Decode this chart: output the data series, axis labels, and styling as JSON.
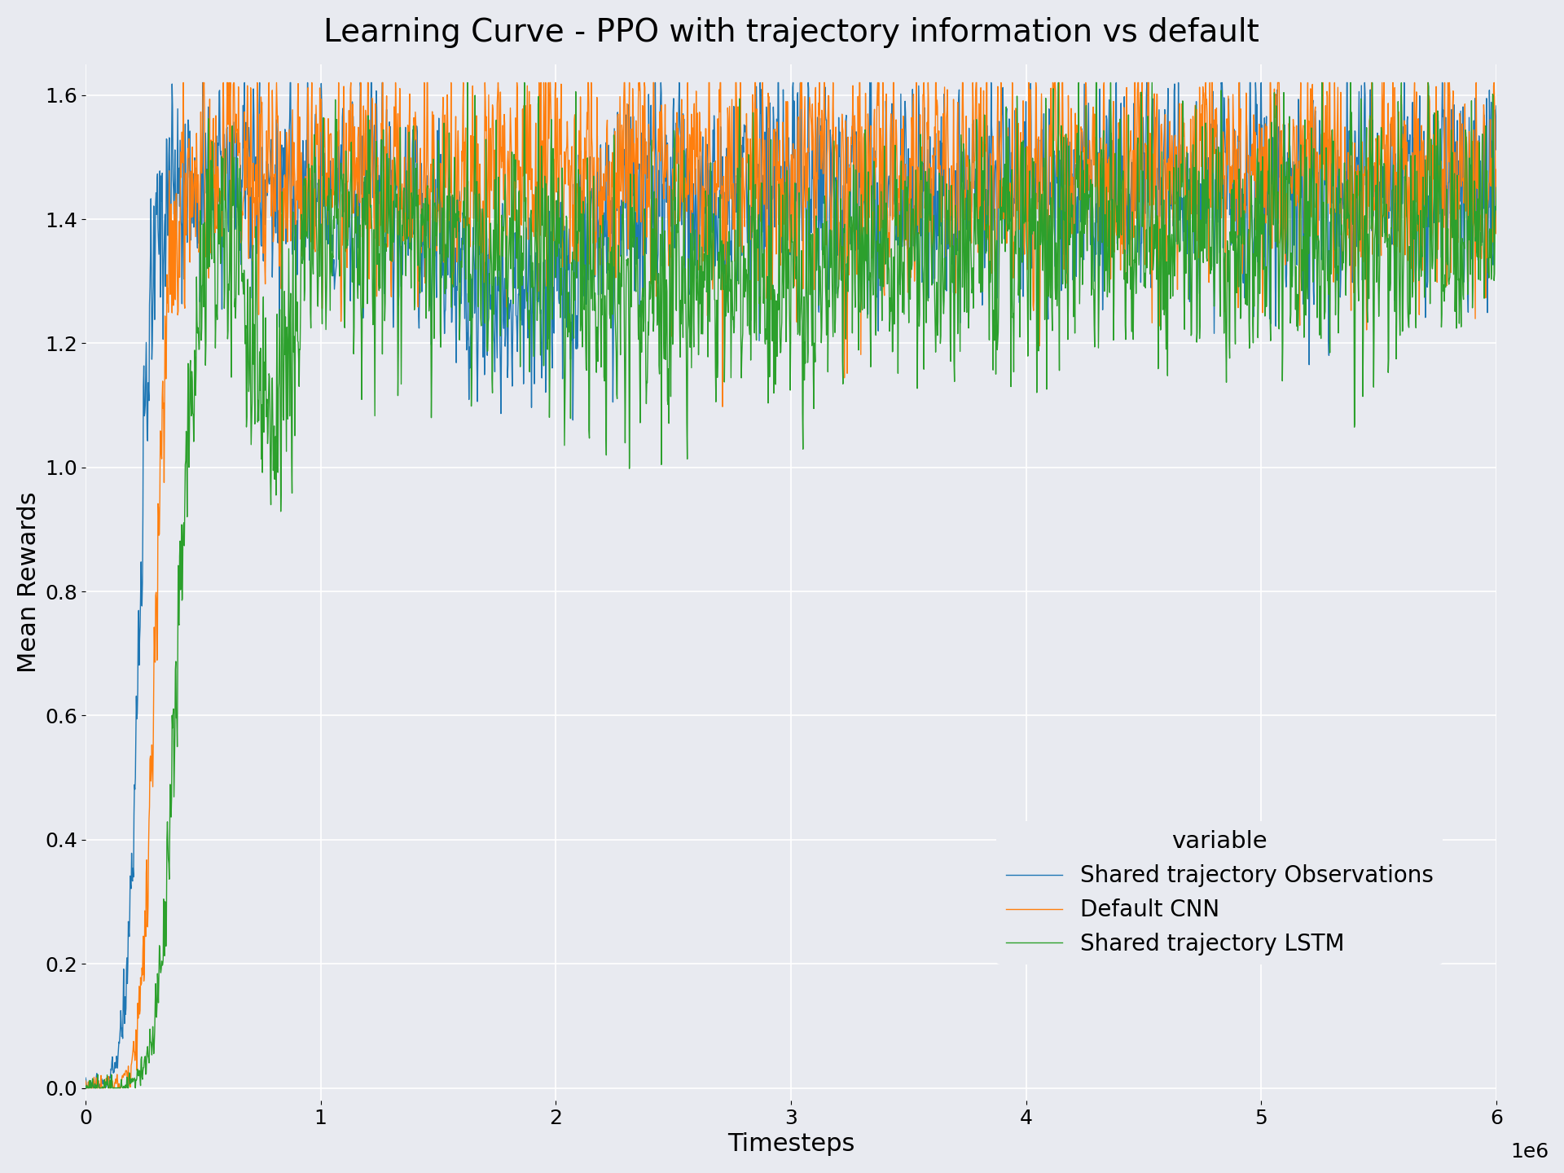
{
  "title": "Learning Curve - PPO with trajectory information vs default",
  "xlabel": "Timesteps",
  "ylabel": "Mean Rewards",
  "legend_title": "variable",
  "legend_labels": [
    "Shared trajectory Observations",
    "Default CNN",
    "Shared trajectory LSTM"
  ],
  "line_colors": [
    "#1f77b4",
    "#ff7f0e",
    "#2ca02c"
  ],
  "xlim": [
    0,
    6000000
  ],
  "ylim": [
    -0.02,
    1.65
  ],
  "ax_facecolor": "#e8eaf0",
  "fig_facecolor": "#e8eaf0",
  "grid_color": "#ffffff",
  "figsize": [
    19.2,
    14.4
  ],
  "dpi": 100,
  "title_fontsize": 28,
  "label_fontsize": 22,
  "tick_fontsize": 18,
  "legend_fontsize": 20,
  "line_width": 1.0,
  "n_points": 3000
}
